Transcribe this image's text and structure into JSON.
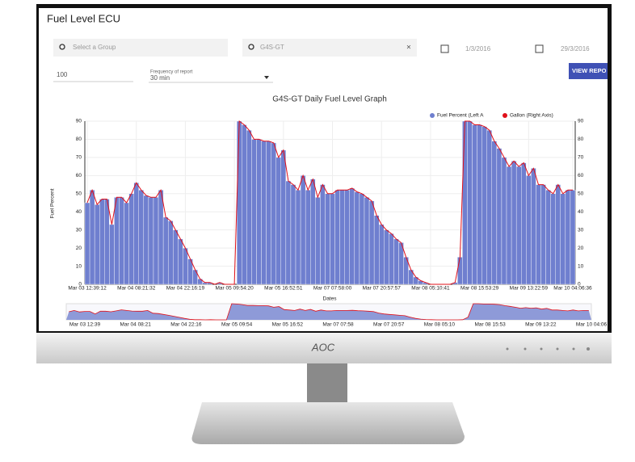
{
  "header": {
    "title": "Fuel Level ECU"
  },
  "filters": {
    "group_placeholder": "Select a Group",
    "group": "G4S-GT",
    "start_date": "1/3/2016",
    "end_date": "29/3/2016",
    "limit": "100",
    "frequency_label": "Frequency of report",
    "frequency": "30 min",
    "button": "VIEW REPO"
  },
  "chart_data": {
    "type": "bar",
    "title": "G4S-GT Daily Fuel Level Graph",
    "x_label": "Dates",
    "y_label": "Fuel Percent",
    "categories": [
      "Mar 03 12:39:12",
      null,
      null,
      null,
      null,
      null,
      null,
      null,
      null,
      null,
      "Mar 04 08:21:32",
      null,
      null,
      null,
      null,
      null,
      null,
      null,
      null,
      null,
      "Mar 04 22:16:19",
      null,
      null,
      null,
      null,
      null,
      null,
      null,
      null,
      null,
      "Mar 05 09:54:20",
      null,
      null,
      null,
      null,
      null,
      null,
      null,
      null,
      null,
      "Mar 05 16:52:51",
      null,
      null,
      null,
      null,
      null,
      null,
      null,
      null,
      null,
      "Mar 07 07:58:00",
      null,
      null,
      null,
      null,
      null,
      null,
      null,
      null,
      null,
      "Mar 07 20:57:57",
      null,
      null,
      null,
      null,
      null,
      null,
      null,
      null,
      null,
      "Mar 08 05:10:41",
      null,
      null,
      null,
      null,
      null,
      null,
      null,
      null,
      null,
      "Mar 08 15:53:29",
      null,
      null,
      null,
      null,
      null,
      null,
      null,
      null,
      null,
      "Mar 09 13:22:59",
      null,
      null,
      null,
      null,
      null,
      null,
      null,
      null,
      "Mar 10 04:06:36"
    ],
    "series": [
      {
        "name": "Fuel Percent (Left A",
        "color": "#6f7fcf",
        "values": [
          45,
          52,
          44,
          47,
          47,
          33,
          48,
          48,
          45,
          50,
          56,
          52,
          49,
          48,
          48,
          52,
          37,
          35,
          30,
          25,
          20,
          14,
          8,
          3,
          1,
          1,
          0,
          1,
          0,
          0,
          0,
          90,
          88,
          85,
          80,
          80,
          79,
          79,
          78,
          70,
          74,
          57,
          55,
          52,
          60,
          52,
          58,
          48,
          55,
          50,
          50,
          52,
          52,
          52,
          53,
          51,
          50,
          48,
          46,
          38,
          33,
          30,
          28,
          25,
          23,
          15,
          8,
          4,
          2,
          1,
          0,
          0,
          0,
          0,
          0,
          1,
          15,
          90,
          90,
          88,
          88,
          87,
          85,
          79,
          75,
          70,
          65,
          68,
          65,
          67,
          60,
          64,
          55,
          55,
          52,
          50,
          55,
          50,
          52,
          52
        ]
      },
      {
        "name": "Gallon (Right Axis)",
        "color": "#e0101a",
        "axis": "y2",
        "values": [
          45,
          52,
          44,
          47,
          47,
          33,
          48,
          48,
          45,
          50,
          56,
          52,
          49,
          48,
          48,
          52,
          37,
          35,
          30,
          25,
          20,
          14,
          8,
          3,
          1,
          1,
          0,
          1,
          0,
          0,
          0,
          90,
          88,
          85,
          80,
          80,
          79,
          79,
          78,
          70,
          74,
          57,
          55,
          52,
          60,
          52,
          58,
          48,
          55,
          50,
          50,
          52,
          52,
          52,
          53,
          51,
          50,
          48,
          46,
          38,
          33,
          30,
          28,
          25,
          23,
          15,
          8,
          4,
          2,
          1,
          0,
          0,
          0,
          0,
          0,
          1,
          15,
          90,
          90,
          88,
          88,
          87,
          85,
          79,
          75,
          70,
          65,
          68,
          65,
          67,
          60,
          64,
          55,
          55,
          52,
          50,
          55,
          50,
          52,
          52
        ]
      }
    ],
    "ylim": [
      0,
      90
    ],
    "yticks": [
      0,
      10,
      20,
      30,
      40,
      50,
      60,
      70,
      80,
      90
    ],
    "y2lim": [
      0,
      90
    ],
    "y2ticks": [
      0,
      10,
      20,
      30,
      40,
      50,
      60,
      70,
      80,
      90
    ],
    "grid": true,
    "legend": "top-right"
  },
  "navigator": {
    "labels": [
      "Mar 03 12:39",
      "Mar 04 08:21",
      "Mar 04 22:16",
      "Mar 05 09:54",
      "Mar 05 16:52",
      "Mar 07 07:58",
      "Mar 07 20:57",
      "Mar 08 05:10",
      "Mar 08 15:53",
      "Mar 09 13:22",
      "Mar 10 04:06"
    ]
  },
  "monitor": {
    "brand": "AOC"
  }
}
